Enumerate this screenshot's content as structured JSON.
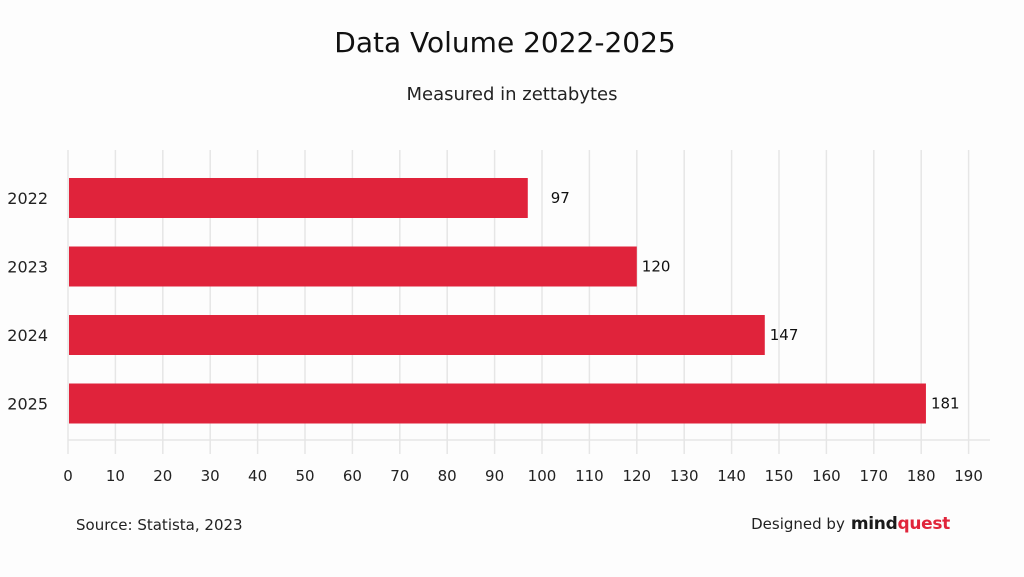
{
  "chart_data": {
    "type": "bar",
    "orientation": "horizontal",
    "title": "Data Volume 2022-2025",
    "subtitle": "Measured in zettabytes",
    "xlabel": "",
    "ylabel": "",
    "categories": [
      "2022",
      "2023",
      "2024",
      "2025"
    ],
    "values": [
      97,
      120,
      147,
      181
    ],
    "data_labels": [
      "97",
      "120",
      "147",
      "181"
    ],
    "xlim": [
      0,
      190
    ],
    "xticks": [
      0,
      10,
      20,
      30,
      40,
      50,
      60,
      70,
      80,
      90,
      100,
      110,
      120,
      130,
      140,
      150,
      160,
      170,
      180,
      190
    ],
    "grid": "vertical",
    "legend": "none",
    "bar_color": "#e0233b"
  },
  "footer": {
    "source": "Source: Statista, 2023",
    "credit_prefix": "Designed by",
    "brand_part1": "mind",
    "brand_part2": "quest"
  }
}
